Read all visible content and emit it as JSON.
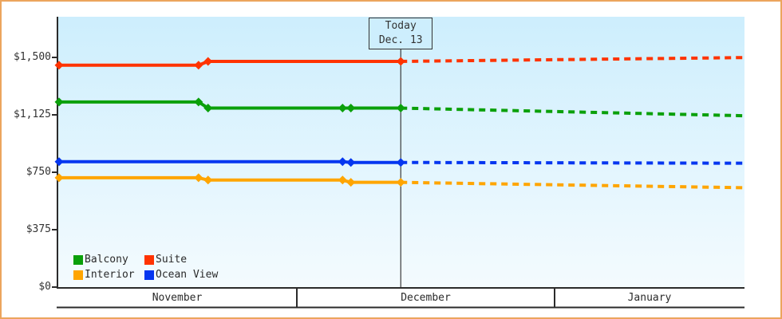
{
  "chart_data": {
    "type": "line",
    "y_axis": {
      "ticks": [
        {
          "value": 1500,
          "label": "$1,500"
        },
        {
          "value": 1125,
          "label": "$1,125"
        },
        {
          "value": 750,
          "label": "$750"
        },
        {
          "value": 375,
          "label": "$375"
        },
        {
          "value": 0,
          "label": "$0"
        }
      ],
      "range": [
        0,
        1775
      ],
      "grid": false
    },
    "x_axis": {
      "months": [
        {
          "label": "November",
          "days": 30
        },
        {
          "label": "December",
          "days": 31
        },
        {
          "label": "January",
          "days": 23
        }
      ]
    },
    "today": {
      "line1": "Today",
      "line2": "Dec. 13",
      "day": 42.5
    },
    "series": [
      {
        "name": "Suite",
        "color": "#ff3300",
        "points": [
          {
            "date": "Nov 1",
            "day": 0,
            "value": 1449
          },
          {
            "date": "Nov 18",
            "day": 17.6,
            "value": 1449
          },
          {
            "date": "Nov 19",
            "day": 18.8,
            "value": 1474
          },
          {
            "date": "Dec 13",
            "day": 42.5,
            "value": 1474
          }
        ],
        "projection": {
          "date": "Jan 23",
          "day": 84,
          "value": 1499
        }
      },
      {
        "name": "Balcony",
        "color": "#0aa00a",
        "points": [
          {
            "date": "Nov 1",
            "day": 0,
            "value": 1209
          },
          {
            "date": "Nov 18",
            "day": 17.6,
            "value": 1209
          },
          {
            "date": "Nov 19",
            "day": 18.8,
            "value": 1169
          },
          {
            "date": "Dec 6",
            "day": 35.5,
            "value": 1169
          },
          {
            "date": "Dec 7",
            "day": 36.5,
            "value": 1169
          },
          {
            "date": "Dec 13",
            "day": 42.5,
            "value": 1169
          }
        ],
        "projection": {
          "date": "Jan 23",
          "day": 84,
          "value": 1119
        }
      },
      {
        "name": "Ocean View",
        "color": "#0536f0",
        "points": [
          {
            "date": "Nov 1",
            "day": 0,
            "value": 819
          },
          {
            "date": "Dec 6",
            "day": 35.5,
            "value": 819
          },
          {
            "date": "Dec 7",
            "day": 36.5,
            "value": 814
          },
          {
            "date": "Dec 13",
            "day": 42.5,
            "value": 814
          }
        ],
        "projection": {
          "date": "Jan 23",
          "day": 84,
          "value": 809
        }
      },
      {
        "name": "Interior",
        "color": "#ffa500",
        "points": [
          {
            "date": "Nov 1",
            "day": 0,
            "value": 714
          },
          {
            "date": "Nov 18",
            "day": 17.6,
            "value": 714
          },
          {
            "date": "Nov 19",
            "day": 18.8,
            "value": 699
          },
          {
            "date": "Dec 6",
            "day": 35.5,
            "value": 699
          },
          {
            "date": "Dec 7",
            "day": 36.5,
            "value": 684
          },
          {
            "date": "Dec 13",
            "day": 42.5,
            "value": 684
          }
        ],
        "projection": {
          "date": "Jan 23",
          "day": 84,
          "value": 649
        }
      }
    ],
    "legend": {
      "position": "bottom-left",
      "rows": [
        [
          "Balcony",
          "Suite"
        ],
        [
          "Interior",
          "Ocean View"
        ]
      ]
    },
    "style": {
      "frame_border": "#eca55d",
      "axis": "#2b2b2b",
      "text": "#333333",
      "plot_bg_top": "#cdeefd",
      "plot_bg_bottom": "#f4fbfe",
      "today_box_bg": "#cdeefd"
    }
  }
}
